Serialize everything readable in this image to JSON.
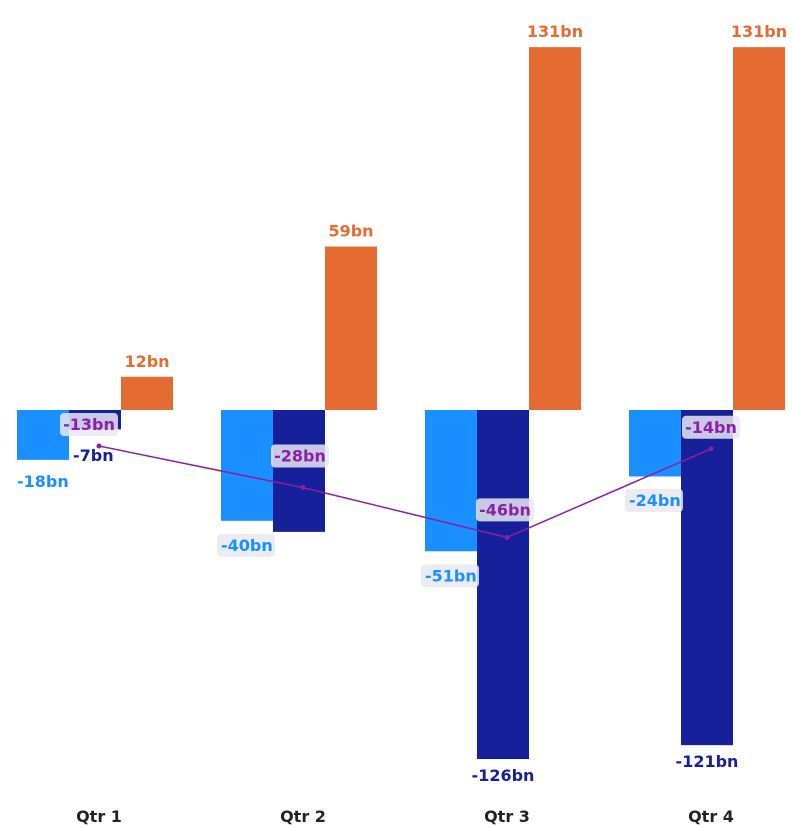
{
  "chart_data": {
    "type": "bar",
    "categories": [
      "Qtr 1",
      "Qtr 2",
      "Qtr 3",
      "Qtr 4"
    ],
    "series": [
      {
        "values": [
          -18,
          -40,
          -51,
          -24
        ],
        "labels": [
          "-18bn",
          "-40bn",
          "-51bn",
          "-24bn"
        ],
        "color": "#1a8fff"
      },
      {
        "values": [
          -7,
          -44,
          -126,
          -121
        ],
        "labels": [
          "-7bn",
          "",
          "-126bn",
          "-121bn"
        ],
        "color": "#15209a"
      },
      {
        "values": [
          12,
          59,
          131,
          131
        ],
        "labels": [
          "12bn",
          "59bn",
          "131bn",
          "131bn"
        ],
        "color": "#e46c32"
      }
    ],
    "line": {
      "type": "line",
      "values": [
        -13,
        -28,
        -46,
        -14
      ],
      "labels": [
        "-13bn",
        "-28bn",
        "-46bn",
        "-14bn"
      ],
      "color": "#8b1fa5"
    },
    "title": "",
    "xlabel": "",
    "ylabel": "",
    "ylim": [
      -135,
      135
    ],
    "grid": false,
    "legend": "none"
  }
}
